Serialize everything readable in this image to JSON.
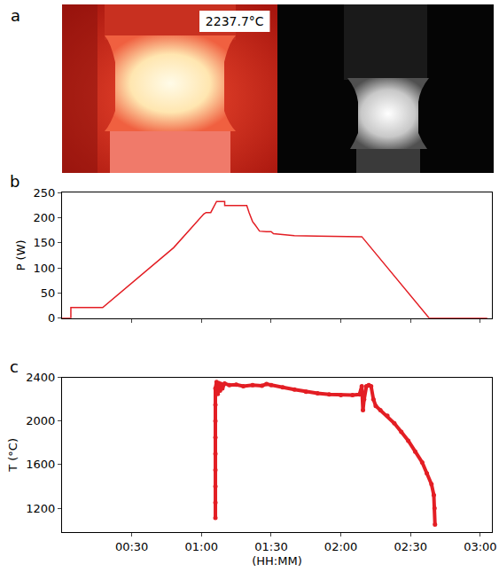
{
  "figure_a": {
    "panel_label": "a",
    "annotation": "2237.7°C"
  },
  "chart_data": [
    {
      "panel_label": "b",
      "type": "line",
      "ylabel": "P (W)",
      "color": "#e31e24",
      "x": [
        0,
        3.8,
        3.8,
        17.5,
        48,
        61,
        62,
        64,
        66.5,
        70,
        70,
        79.5,
        80.5,
        81.5,
        82,
        83,
        84,
        85,
        88,
        90,
        91,
        95,
        100,
        110,
        129,
        158,
        183
      ],
      "values": [
        0,
        0,
        21,
        21,
        140,
        207,
        210,
        210,
        232,
        232,
        224,
        224,
        210,
        200,
        192,
        186,
        180,
        173,
        172,
        172,
        168,
        166,
        164,
        163,
        162,
        0,
        0
      ],
      "xlim": [
        0,
        185
      ],
      "xticks": [
        30,
        60,
        90,
        120,
        150,
        180
      ],
      "ylim": [
        0,
        250
      ],
      "yticks": [
        0,
        50,
        100,
        150,
        200,
        250
      ],
      "tick_labels": "y",
      "grid": false
    },
    {
      "panel_label": "c",
      "type": "scatter",
      "ylabel": "T (°C)",
      "xlabel": "(HH:MM)",
      "color": "#e31e24",
      "x": [
        66,
        66,
        66,
        66,
        66,
        66,
        66,
        66,
        66,
        66.5,
        67,
        67.5,
        68,
        68.5,
        69,
        70,
        72,
        75,
        78,
        82,
        86,
        88,
        90,
        95,
        100,
        105,
        110,
        115,
        120,
        125,
        128,
        129,
        129.5,
        130,
        131,
        132,
        133,
        134,
        135,
        137,
        140,
        143,
        146,
        149,
        152,
        155,
        157,
        159,
        160,
        160.3,
        160.5
      ],
      "values": [
        1110,
        1250,
        1400,
        1550,
        1700,
        1850,
        2000,
        2150,
        2300,
        2360,
        2250,
        2350,
        2280,
        2340,
        2300,
        2345,
        2330,
        2335,
        2320,
        2330,
        2325,
        2340,
        2330,
        2310,
        2290,
        2270,
        2255,
        2245,
        2240,
        2240,
        2245,
        2320,
        2100,
        2200,
        2320,
        2330,
        2320,
        2200,
        2140,
        2100,
        2050,
        1980,
        1900,
        1820,
        1720,
        1620,
        1520,
        1420,
        1320,
        1200,
        1050
      ],
      "xlim": [
        0,
        185
      ],
      "xticks": [
        {
          "value": 30,
          "label": "00:30"
        },
        {
          "value": 60,
          "label": "01:00"
        },
        {
          "value": 90,
          "label": "01:30"
        },
        {
          "value": 120,
          "label": "02:00"
        },
        {
          "value": 150,
          "label": "02:30"
        },
        {
          "value": 180,
          "label": "03:00"
        }
      ],
      "ylim": [
        980,
        2400
      ],
      "yticks": [
        1200,
        1600,
        2000,
        2400
      ],
      "grid": false
    }
  ]
}
